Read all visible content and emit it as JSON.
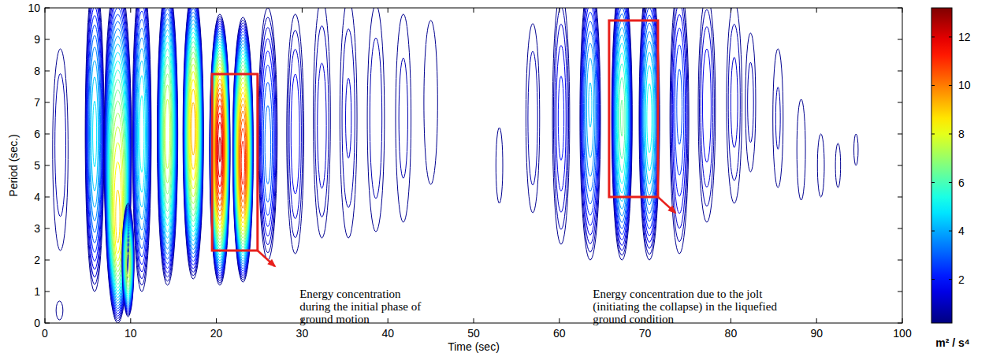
{
  "chart_data": {
    "type": "contour",
    "x_label": "Time (sec)",
    "y_label": "Period (sec.)",
    "xlim": [
      0,
      100
    ],
    "xticks": [
      0,
      10,
      20,
      30,
      40,
      50,
      60,
      70,
      80,
      90,
      100
    ],
    "ylim": [
      0,
      10
    ],
    "yticks": [
      0,
      1,
      2,
      3,
      4,
      5,
      6,
      7,
      8,
      9,
      10
    ],
    "contour_levels": [
      0.4,
      0.8,
      1.2,
      1.6,
      2,
      2.4,
      2.8,
      3.2,
      3.6,
      4,
      4.4,
      4.8,
      5.2,
      5.6,
      6,
      6.4,
      6.8,
      7.2,
      7.6,
      8,
      8.4,
      8.8,
      9.2,
      9.6,
      10,
      10.4,
      10.8,
      11.2,
      11.6,
      12,
      12.4
    ],
    "blobs": [
      {
        "time": 1.8,
        "period": 6,
        "base_period": 5.5,
        "half_width": 0.9,
        "half_height": 3.2,
        "peak": 1.2
      },
      {
        "time": 1.7,
        "period": 0.4,
        "base_period": 0.4,
        "half_width": 0.4,
        "half_height": 0.3,
        "peak": 0.8
      },
      {
        "time": 5.8,
        "period": 6,
        "base_period": 6,
        "half_width": 1.1,
        "half_height": 5,
        "peak": 5
      },
      {
        "time": 8.5,
        "period": 3,
        "base_period": 5.5,
        "half_width": 1.6,
        "half_height": 5.5,
        "peak": 9
      },
      {
        "time": 9.7,
        "period": 1.8,
        "base_period": 2,
        "half_width": 0.7,
        "half_height": 1.8,
        "peak": 8
      },
      {
        "time": 11.3,
        "period": 6,
        "base_period": 6,
        "half_width": 1.1,
        "half_height": 5,
        "peak": 5.5
      },
      {
        "time": 14.3,
        "period": 6,
        "base_period": 6,
        "half_width": 1.2,
        "half_height": 4.8,
        "peak": 8
      },
      {
        "time": 17.3,
        "period": 6.2,
        "base_period": 6,
        "half_width": 1.2,
        "half_height": 4.6,
        "peak": 9.5
      },
      {
        "time": 20.4,
        "period": 5.5,
        "base_period": 5.5,
        "half_width": 1.2,
        "half_height": 4.3,
        "peak": 12.5
      },
      {
        "time": 23.1,
        "period": 5,
        "base_period": 5.5,
        "half_width": 1.2,
        "half_height": 4.2,
        "peak": 11.5
      },
      {
        "time": 26,
        "period": 5.5,
        "base_period": 6,
        "half_width": 1.1,
        "half_height": 4,
        "peak": 3.5
      },
      {
        "time": 29.2,
        "period": 6,
        "base_period": 6,
        "half_width": 1,
        "half_height": 3.8,
        "peak": 2
      },
      {
        "time": 32.3,
        "period": 6,
        "base_period": 6.5,
        "half_width": 1,
        "half_height": 3.8,
        "peak": 1.5
      },
      {
        "time": 35.4,
        "period": 6.5,
        "base_period": 6.5,
        "half_width": 1,
        "half_height": 3.8,
        "peak": 1.3
      },
      {
        "time": 38.6,
        "period": 6.5,
        "base_period": 6.5,
        "half_width": 1,
        "half_height": 3.6,
        "peak": 1.2
      },
      {
        "time": 41.8,
        "period": 6.5,
        "base_period": 6.5,
        "half_width": 0.9,
        "half_height": 3.3,
        "peak": 1
      },
      {
        "time": 45,
        "period": 6.5,
        "base_period": 7,
        "half_width": 0.8,
        "half_height": 2.6,
        "peak": 0.8
      },
      {
        "time": 53,
        "period": 5,
        "base_period": 5,
        "half_width": 0.4,
        "half_height": 1.2,
        "peak": 0.7
      },
      {
        "time": 56.9,
        "period": 6.5,
        "base_period": 6.5,
        "half_width": 0.8,
        "half_height": 3,
        "peak": 1.2
      },
      {
        "time": 60.2,
        "period": 6.5,
        "base_period": 6.5,
        "half_width": 1,
        "half_height": 4,
        "peak": 2.2
      },
      {
        "time": 63.6,
        "period": 7,
        "base_period": 6.5,
        "half_width": 1.2,
        "half_height": 4.5,
        "peak": 4.5
      },
      {
        "time": 67.3,
        "period": 6.5,
        "base_period": 6.5,
        "half_width": 1.2,
        "half_height": 4.5,
        "peak": 6.5
      },
      {
        "time": 70.5,
        "period": 6.5,
        "base_period": 6.5,
        "half_width": 1.2,
        "half_height": 4.5,
        "peak": 5.5
      },
      {
        "time": 74,
        "period": 7,
        "base_period": 6.5,
        "half_width": 1.1,
        "half_height": 4.3,
        "peak": 3
      },
      {
        "time": 77.2,
        "period": 7,
        "base_period": 6.8,
        "half_width": 1,
        "half_height": 3.6,
        "peak": 2
      },
      {
        "time": 80.4,
        "period": 7,
        "base_period": 7,
        "half_width": 0.9,
        "half_height": 3.2,
        "peak": 1.4
      },
      {
        "time": 82.3,
        "period": 7,
        "base_period": 7,
        "half_width": 0.6,
        "half_height": 2.2,
        "peak": 1
      },
      {
        "time": 85.5,
        "period": 6.5,
        "base_period": 6.5,
        "half_width": 0.6,
        "half_height": 2.2,
        "peak": 0.9
      },
      {
        "time": 88.2,
        "period": 5.5,
        "base_period": 5.5,
        "half_width": 0.5,
        "half_height": 1.6,
        "peak": 0.8
      },
      {
        "time": 90.5,
        "period": 5,
        "base_period": 5,
        "half_width": 0.4,
        "half_height": 1,
        "peak": 0.7
      },
      {
        "time": 92.5,
        "period": 5,
        "base_period": 5,
        "half_width": 0.3,
        "half_height": 0.7,
        "peak": 0.6
      },
      {
        "time": 94.6,
        "period": 5.5,
        "base_period": 5.5,
        "half_width": 0.25,
        "half_height": 0.5,
        "peak": 0.6
      }
    ],
    "colorbar": {
      "label": "m² / s⁴",
      "range": [
        0.2,
        13.2
      ],
      "ticks": [
        2,
        4,
        6,
        8,
        10,
        12
      ]
    },
    "annotations": [
      {
        "lines": [
          "Energy concentration",
          "during the initial phase of",
          "ground motion"
        ],
        "box_x": [
          19.5,
          24.8
        ],
        "box_y": [
          2.3,
          7.9
        ],
        "text_x": 29.7,
        "text_y": 0.8,
        "color": "#e8201c"
      },
      {
        "lines": [
          "Energy concentration due to the jolt",
          "(initiating the collapse) in the liquefied",
          "ground condition"
        ],
        "box_x": [
          65.8,
          71.5
        ],
        "box_y": [
          4.0,
          9.6
        ],
        "text_x": 63.9,
        "text_y": 0.8,
        "color": "#e8201c"
      }
    ]
  }
}
